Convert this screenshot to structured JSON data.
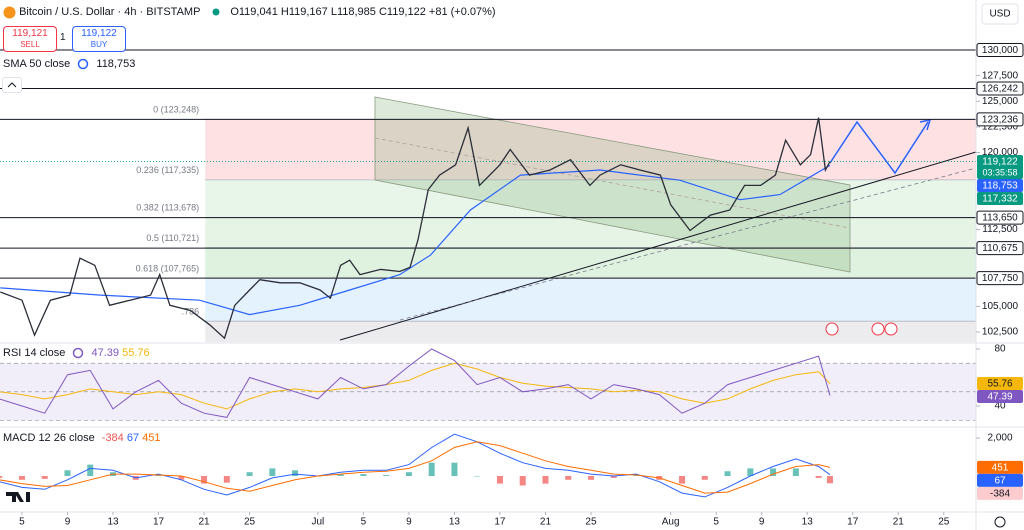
{
  "chart_data": [
    {
      "type": "line",
      "title": "Bitcoin / U.S. Dollar · 4h · BITSTAMP",
      "ohlc": "O119,041 H119,167 L118,985 C119,122 +81 (+0.07%)",
      "sell_price": "119,121",
      "sell_label": "SELL",
      "quantity": "1",
      "buy_price": "119,122",
      "buy_label": "BUY",
      "currency": "USD",
      "countdown": "03:35:58",
      "color": "#2a2e39",
      "last_label": "119,122",
      "last_color": "#089981",
      "x": [
        2.1,
        4.0,
        5.1,
        6.5,
        8.2,
        9.1,
        10.4,
        11.7,
        13.5,
        15.3,
        16.1,
        17.0,
        18.8,
        20.5,
        21.8,
        22.7,
        24.0,
        24.9,
        26.7,
        28.4,
        30.2,
        31.1,
        32.0,
        32.8,
        33.7,
        35.5,
        37.2,
        38.1,
        38.8,
        39.7,
        40.7,
        42.1,
        43.2,
        44.2,
        46.0,
        46.9,
        48.6,
        50.4,
        52.2,
        53.9,
        54.8,
        56.6,
        58.3,
        60.1,
        61.0,
        62.7,
        64.5,
        66.2,
        67.5,
        68.9,
        70.2,
        71.1,
        72.4,
        73.3,
        74.0,
        74.6,
        75.0
      ],
      "values": [
        106400,
        105600,
        102200,
        105600,
        106100,
        109700,
        109000,
        105100,
        105600,
        106100,
        108100,
        105100,
        104600,
        103200,
        101900,
        105100,
        106600,
        107600,
        107300,
        107300,
        106600,
        105800,
        109000,
        109500,
        108100,
        108600,
        108400,
        108800,
        111500,
        116400,
        117800,
        118800,
        122400,
        116800,
        118800,
        120300,
        117800,
        118300,
        119300,
        116800,
        117800,
        118800,
        118300,
        117800,
        114900,
        112400,
        113900,
        114400,
        116800,
        116800,
        117800,
        121200,
        118800,
        119800,
        123400,
        118300,
        119122
      ],
      "series": [
        {
          "name": "SMA 50 close",
          "color": "#2962ff",
          "last_label": "118,753",
          "x": [
            2.1,
            10.9,
            19.6,
            24.0,
            28.4,
            32.8,
            37.2,
            39.9,
            43.4,
            47.8,
            54.8,
            61.8,
            67.1,
            70.6,
            75.0
          ],
          "values": [
            106800,
            106100,
            105600,
            104200,
            105100,
            106600,
            108100,
            110000,
            114400,
            117800,
            118300,
            117300,
            115400,
            115900,
            118753
          ]
        }
      ],
      "xlim": [
        2.07,
        87.83
      ],
      "xticks": [
        {
          "value": 4,
          "label": "5"
        },
        {
          "value": 8,
          "label": "9"
        },
        {
          "value": 12,
          "label": "13"
        },
        {
          "value": 16,
          "label": "17"
        },
        {
          "value": 20,
          "label": "21"
        },
        {
          "value": 24,
          "label": "25"
        },
        {
          "value": 30,
          "label": "Jul"
        },
        {
          "value": 34,
          "label": "5"
        },
        {
          "value": 38,
          "label": "9"
        },
        {
          "value": 42,
          "label": "13"
        },
        {
          "value": 46,
          "label": "17"
        },
        {
          "value": 50,
          "label": "21"
        },
        {
          "value": 54,
          "label": "25"
        },
        {
          "value": 61,
          "label": "Aug"
        },
        {
          "value": 65,
          "label": "5"
        },
        {
          "value": 69,
          "label": "9"
        },
        {
          "value": 73,
          "label": "13"
        },
        {
          "value": 77,
          "label": "17"
        },
        {
          "value": 81,
          "label": "21"
        },
        {
          "value": 85,
          "label": "25"
        }
      ],
      "ylim": [
        101525,
        134875
      ],
      "yticks": [
        {
          "value": 102500,
          "label": "102,500"
        },
        {
          "value": 105000,
          "label": "105,000"
        },
        {
          "value": 112500,
          "label": "112,500"
        },
        {
          "value": 120000,
          "label": "120,000"
        },
        {
          "value": 122500,
          "label": "122,500"
        },
        {
          "value": 125000,
          "label": "125,000"
        },
        {
          "value": 127500,
          "label": "127,500"
        }
      ],
      "levels": [
        {
          "value": 130000,
          "label": "130,000"
        },
        {
          "value": 126242,
          "label": "126,242"
        },
        {
          "value": 123236,
          "label": "123,236"
        },
        {
          "value": 113650,
          "label": "113,650"
        },
        {
          "value": 110675,
          "label": "110,675"
        },
        {
          "value": 107750,
          "label": "107,750"
        }
      ],
      "target": {
        "value": 117332,
        "label": "117,332",
        "color": "#089981"
      },
      "fib": {
        "start": 20.1,
        "levels": [
          {
            "value": 123248,
            "label": "0 (123,248)"
          },
          {
            "value": 117335,
            "label": "0.236 (117,335)"
          },
          {
            "value": 113678,
            "label": "0.382 (113,678)"
          },
          {
            "value": 110721,
            "label": "0.5 (110,721)"
          },
          {
            "value": 107765,
            "label": "0.618 (107,765)"
          },
          {
            "value": 103555,
            "label": ".786"
          }
        ],
        "colors": [
          "rgba(242,54,69,0.15)",
          "rgba(129,199,132,0.18)",
          "rgba(76,175,80,0.14)",
          "rgba(76,175,80,0.18)",
          "rgba(33,150,243,0.12)",
          "rgba(120,123,134,0.14)"
        ]
      }
    },
    {
      "type": "line",
      "title": "RSI 14 close",
      "x": [
        2,
        4,
        6,
        8,
        10,
        12,
        14,
        16,
        18,
        20,
        22,
        24,
        26,
        28,
        30,
        32,
        34,
        36,
        38,
        40,
        42,
        44,
        46,
        48,
        50,
        52,
        54,
        56,
        58,
        60,
        62,
        64,
        66,
        68,
        70,
        72,
        74,
        75
      ],
      "series": [
        {
          "color": "#7e57c2",
          "values": [
            45,
            40,
            35,
            62,
            65,
            38,
            50,
            58,
            42,
            35,
            32,
            60,
            55,
            50,
            45,
            60,
            52,
            55,
            68,
            80,
            72,
            55,
            60,
            50,
            52,
            55,
            45,
            55,
            52,
            48,
            35,
            42,
            55,
            60,
            65,
            70,
            75,
            47.39
          ]
        },
        {
          "color": "#f5b70a",
          "values": [
            50,
            48,
            45,
            48,
            52,
            50,
            48,
            50,
            48,
            42,
            38,
            45,
            50,
            52,
            50,
            52,
            53,
            55,
            58,
            65,
            70,
            66,
            60,
            56,
            54,
            53,
            52,
            50,
            51,
            50,
            45,
            42,
            45,
            52,
            58,
            62,
            64,
            55.76
          ]
        }
      ],
      "ylim": [
        26.7,
        82.8
      ],
      "yticks": [
        40,
        80
      ],
      "bands": [
        30,
        50,
        70
      ],
      "band_fill": "rgba(126,87,194,0.1)"
    },
    {
      "type": "macd",
      "title": "MACD 12 26 close",
      "x": [
        2,
        4,
        6,
        8,
        10,
        12,
        14,
        16,
        18,
        20,
        22,
        24,
        26,
        28,
        30,
        32,
        34,
        36,
        38,
        40,
        42,
        44,
        46,
        48,
        50,
        52,
        54,
        56,
        58,
        60,
        62,
        64,
        66,
        68,
        70,
        72,
        74,
        75
      ],
      "histogram": {
        "up_color": "#26a69a",
        "down_color": "#ef5350",
        "values": [
          -100,
          -200,
          -150,
          300,
          600,
          200,
          -200,
          50,
          -200,
          -400,
          -350,
          200,
          400,
          300,
          0,
          100,
          100,
          50,
          200,
          700,
          700,
          0,
          -400,
          -500,
          -400,
          -200,
          -200,
          -100,
          50,
          -200,
          -400,
          -200,
          250,
          400,
          400,
          400,
          -100,
          -384
        ]
      },
      "series": [
        {
          "color": "#2962ff",
          "values": [
            -300,
            -600,
            -700,
            -200,
            400,
            300,
            -100,
            100,
            -200,
            -700,
            -1000,
            -600,
            -100,
            100,
            0,
            200,
            300,
            300,
            600,
            1500,
            2200,
            1800,
            1200,
            700,
            400,
            300,
            100,
            0,
            100,
            -300,
            -900,
            -1100,
            -600,
            0,
            500,
            900,
            500,
            67
          ]
        },
        {
          "color": "#ff6d00",
          "values": [
            -200,
            -400,
            -550,
            -500,
            -200,
            100,
            100,
            50,
            0,
            -300,
            -650,
            -800,
            -500,
            -200,
            0,
            100,
            200,
            250,
            400,
            800,
            1500,
            1800,
            1600,
            1200,
            800,
            500,
            300,
            100,
            50,
            -100,
            -500,
            -900,
            -850,
            -400,
            100,
            500,
            600,
            451
          ]
        }
      ],
      "ylim": [
        -1895,
        2421
      ],
      "yticks": [
        {
          "value": 2000,
          "label": "2,000"
        }
      ]
    }
  ]
}
